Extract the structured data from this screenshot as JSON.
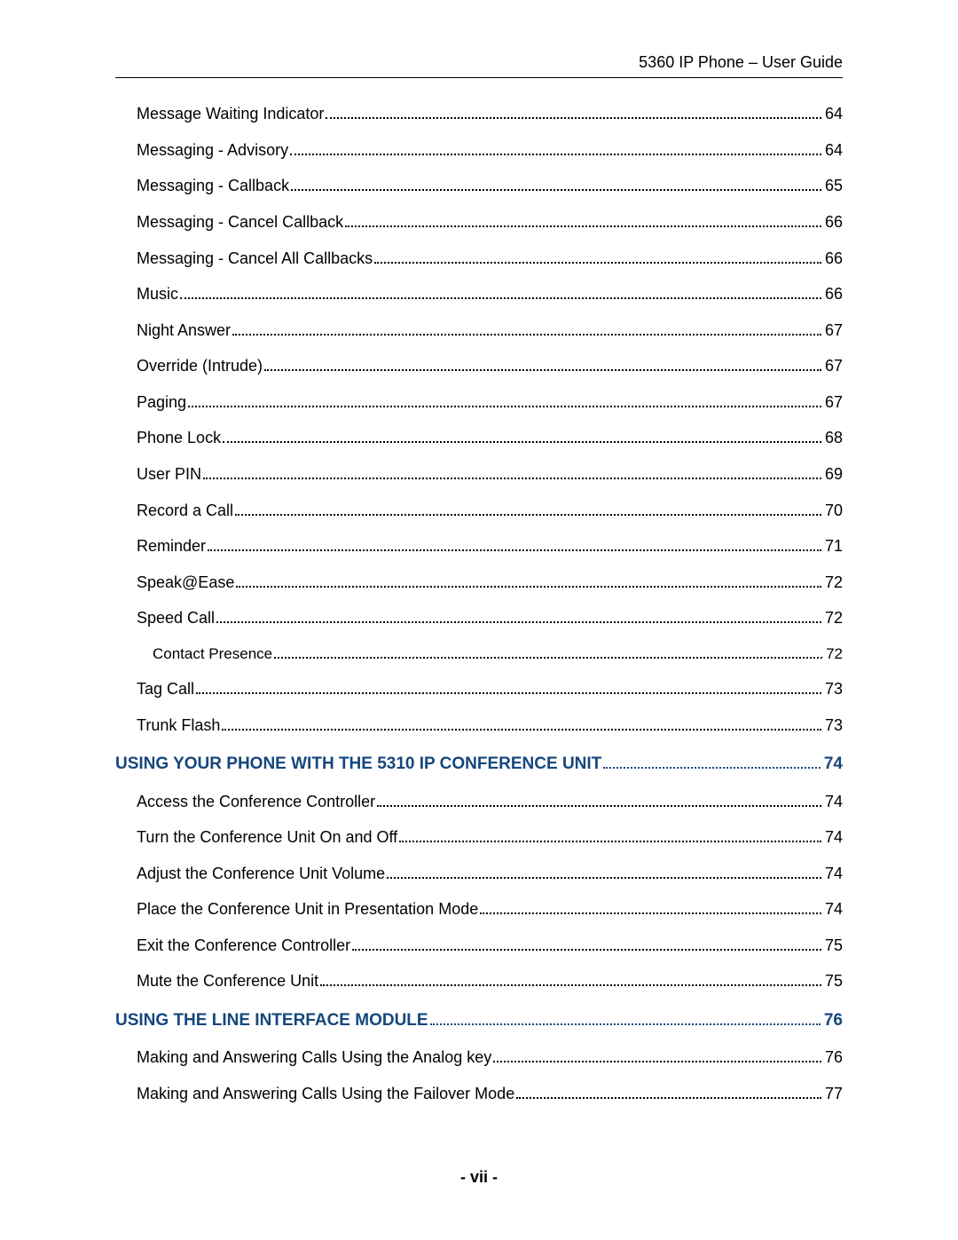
{
  "header": "5360 IP Phone – User Guide",
  "footer": "- vii -",
  "colors": {
    "section_heading": "#15477c",
    "body_text": "#000000",
    "page_bg": "#ffffff",
    "rule": "#000000"
  },
  "typography": {
    "body_fontsize_pt": 13,
    "section_fontsize_pt": 14,
    "font_family": "Arial"
  },
  "toc": [
    {
      "type": "item",
      "label": "Message Waiting Indicator",
      "page": "64"
    },
    {
      "type": "item",
      "label": "Messaging - Advisory",
      "page": "64"
    },
    {
      "type": "item",
      "label": "Messaging - Callback",
      "page": "65"
    },
    {
      "type": "item",
      "label": "Messaging - Cancel Callback",
      "page": "66"
    },
    {
      "type": "item",
      "label": "Messaging - Cancel All Callbacks",
      "page": "66"
    },
    {
      "type": "item",
      "label": "Music",
      "page": "66"
    },
    {
      "type": "item",
      "label": "Night Answer",
      "page": "67"
    },
    {
      "type": "item",
      "label": "Override (Intrude)",
      "page": "67"
    },
    {
      "type": "item",
      "label": "Paging",
      "page": "67"
    },
    {
      "type": "item",
      "label": "Phone Lock",
      "page": "68"
    },
    {
      "type": "item",
      "label": "User PIN",
      "page": "69"
    },
    {
      "type": "item",
      "label": "Record a Call",
      "page": "70"
    },
    {
      "type": "item",
      "label": "Reminder",
      "page": "71"
    },
    {
      "type": "item",
      "label": "Speak@Ease",
      "page": "72"
    },
    {
      "type": "item",
      "label": "Speed Call",
      "page": "72"
    },
    {
      "type": "subitem",
      "label": "Contact Presence",
      "page": "72"
    },
    {
      "type": "item",
      "label": "Tag Call",
      "page": "73"
    },
    {
      "type": "item",
      "label": "Trunk Flash",
      "page": "73"
    },
    {
      "type": "section",
      "label": "USING YOUR PHONE WITH THE 5310 IP CONFERENCE UNIT",
      "page": "74"
    },
    {
      "type": "item",
      "label": "Access the Conference Controller",
      "page": "74"
    },
    {
      "type": "item",
      "label": "Turn the Conference Unit On and Off",
      "page": "74"
    },
    {
      "type": "item",
      "label": "Adjust the Conference Unit Volume",
      "page": "74"
    },
    {
      "type": "item",
      "label": "Place the Conference Unit in Presentation Mode",
      "page": "74"
    },
    {
      "type": "item",
      "label": "Exit the Conference Controller",
      "page": "75"
    },
    {
      "type": "item",
      "label": "Mute the Conference Unit",
      "page": "75"
    },
    {
      "type": "section",
      "label": "USING THE LINE INTERFACE MODULE",
      "page": "76"
    },
    {
      "type": "item",
      "label": "Making and Answering Calls Using the Analog key",
      "page": "76"
    },
    {
      "type": "item",
      "label": "Making and Answering Calls Using the Failover Mode",
      "page": "77"
    }
  ]
}
